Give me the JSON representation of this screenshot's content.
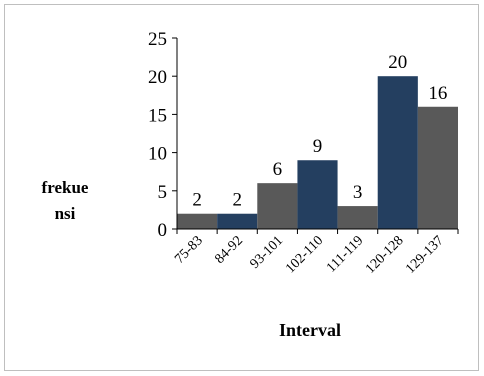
{
  "chart_data": {
    "type": "bar",
    "title": "",
    "xlabel": "Interval",
    "ylabel": "frekuensi",
    "ylabel_lines": [
      "frekue",
      "nsi"
    ],
    "categories": [
      "75-83",
      "84-92",
      "93-101",
      "102-110",
      "111-119",
      "120-128",
      "129-137"
    ],
    "values": [
      2,
      2,
      6,
      9,
      3,
      20,
      16
    ],
    "data_labels": [
      "2",
      "2",
      "6",
      "9",
      "3",
      "20",
      "16"
    ],
    "ylim": [
      0,
      25
    ],
    "yticks": [
      0,
      5,
      10,
      15,
      20,
      25
    ],
    "grid": false,
    "legend": "none",
    "bar_colors": [
      "#595959",
      "#243f60",
      "#595959",
      "#243f60",
      "#595959",
      "#243f60",
      "#595959"
    ]
  }
}
